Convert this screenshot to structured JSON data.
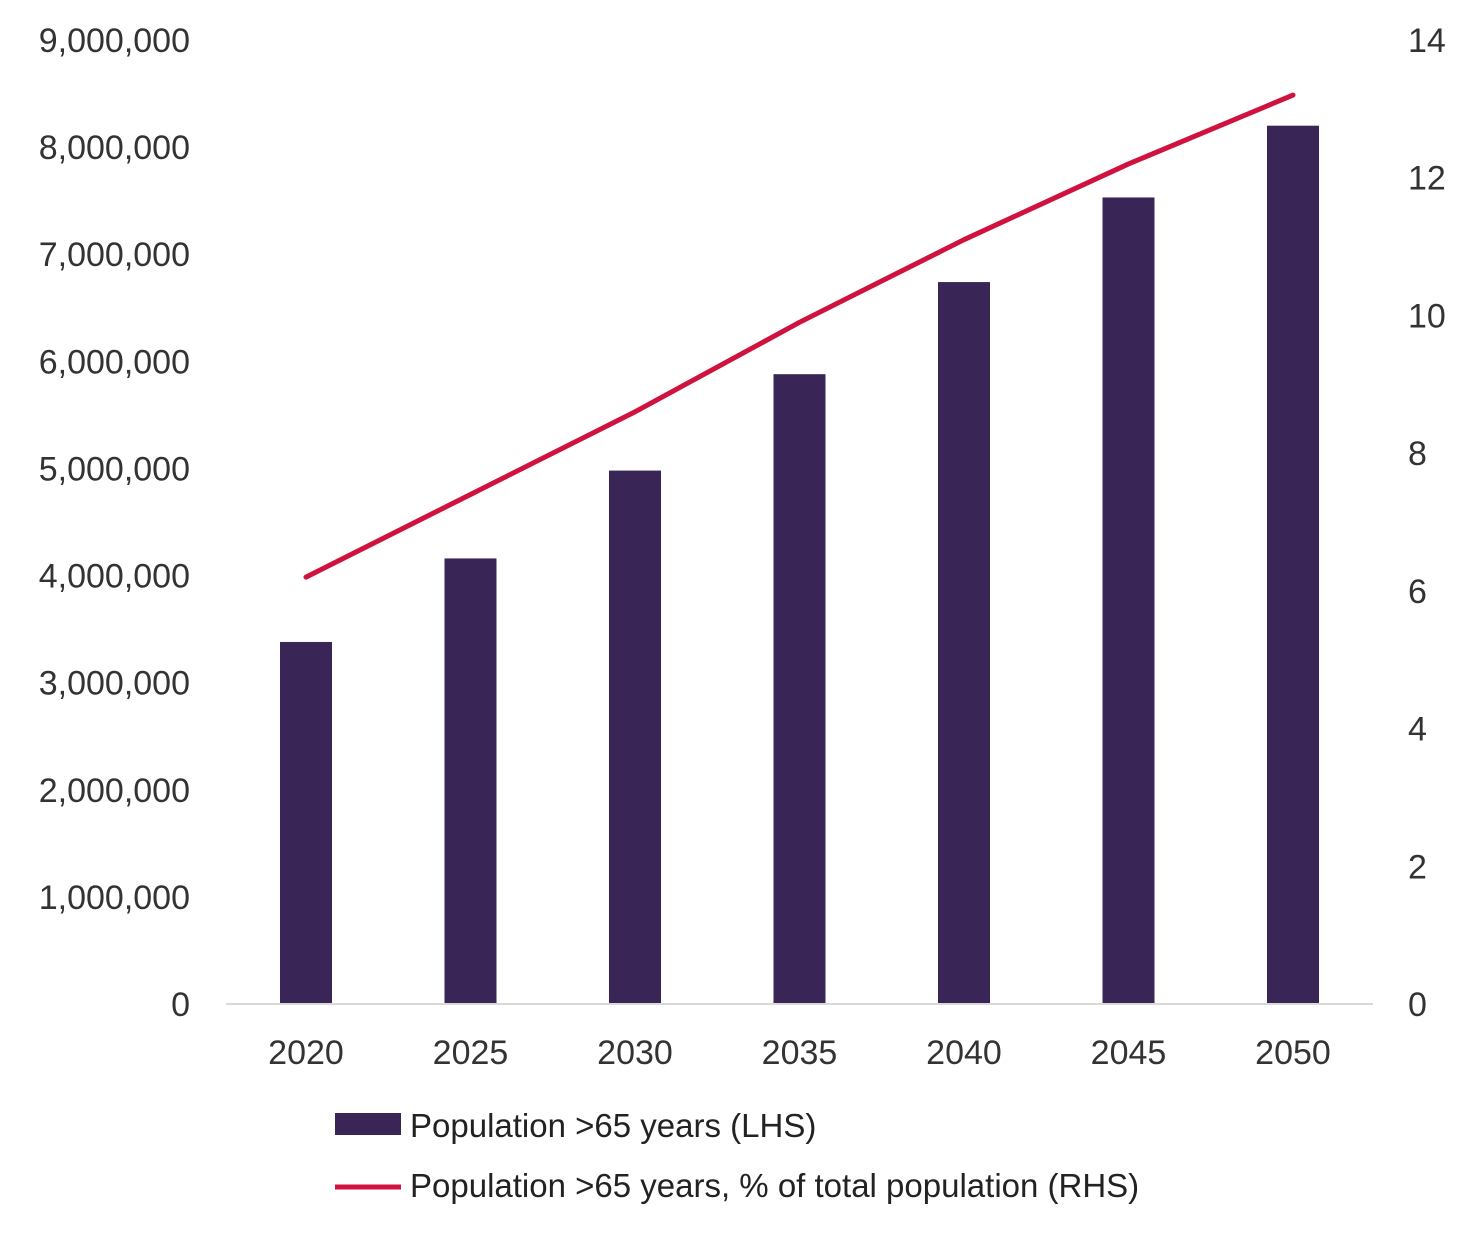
{
  "chart_data": {
    "type": "bar",
    "categories": [
      "2020",
      "2025",
      "2030",
      "2035",
      "2040",
      "2045",
      "2050"
    ],
    "series": [
      {
        "name": "Population >65 years (LHS)",
        "type": "bar",
        "axis": "left",
        "color": "#392657",
        "values": [
          3380000,
          4160000,
          4980000,
          5880000,
          6740000,
          7530000,
          8200000
        ]
      },
      {
        "name": "Population >65 years, % of total population (RHS)",
        "type": "line",
        "axis": "right",
        "color": "#d0123f",
        "values": [
          6.2,
          7.4,
          8.6,
          9.9,
          11.1,
          12.2,
          13.2
        ]
      }
    ],
    "y_left": {
      "lim": [
        0,
        9000000
      ],
      "ticks": [
        0,
        1000000,
        2000000,
        3000000,
        4000000,
        5000000,
        6000000,
        7000000,
        8000000,
        9000000
      ],
      "tick_labels": [
        "0",
        "1,000,000",
        "2,000,000",
        "3,000,000",
        "4,000,000",
        "5,000,000",
        "6,000,000",
        "7,000,000",
        "8,000,000",
        "9,000,000"
      ]
    },
    "y_right": {
      "lim": [
        0,
        14
      ],
      "ticks": [
        0,
        2,
        4,
        6,
        8,
        10,
        12,
        14
      ],
      "tick_labels": [
        "0",
        "2",
        "4",
        "6",
        "8",
        "10",
        "12",
        "14"
      ]
    },
    "grid": false,
    "legend_position": "bottom"
  }
}
